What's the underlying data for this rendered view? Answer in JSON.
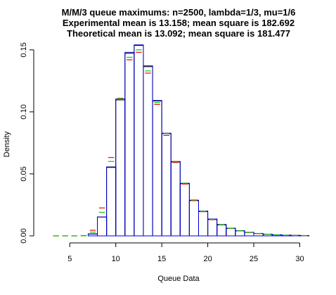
{
  "chart_data": {
    "type": "bar",
    "title_lines": [
      "M/M/3 queue maximums: n=2500, lambda=1/3, mu=1/6",
      "Experimental mean is 13.158; mean square is 182.692",
      "Theoretical mean is 13.092; mean square is 181.477"
    ],
    "xlabel": "Queue Data",
    "ylabel": "Density",
    "xlim": [
      2,
      30.5
    ],
    "ylim": [
      0,
      0.155
    ],
    "x_ticks": [
      5,
      10,
      15,
      20,
      25,
      30
    ],
    "y_ticks": [
      0.0,
      0.05,
      0.1,
      0.15
    ],
    "x_tick_labels": [
      "5",
      "10",
      "15",
      "20",
      "25",
      "30"
    ],
    "y_tick_labels": [
      "0.00",
      "0.05",
      "0.10",
      "0.15"
    ],
    "bin_width": 1,
    "bins_left": [
      3,
      4,
      5,
      6,
      7,
      8,
      9,
      10,
      11,
      12,
      13,
      14,
      15,
      16,
      17,
      18,
      19,
      20,
      21,
      22,
      23,
      24,
      25,
      26,
      27,
      28,
      29,
      30
    ],
    "series": [
      {
        "style": "histogram",
        "color": "#000000",
        "values": [
          0,
          0,
          0,
          0,
          0.0016,
          0.0152,
          0.0552,
          0.1096,
          0.1472,
          0.1536,
          0.1364,
          0.1088,
          0.0824,
          0.0596,
          0.042,
          0.0284,
          0.0196,
          0.0132,
          0.0088,
          0.006,
          0.004,
          0.0028,
          0.002,
          0.0012,
          0.0008,
          0.0006,
          0.0004,
          0.0003
        ]
      },
      {
        "style": "markers",
        "color": "#ff0000",
        "values": [
          0,
          0,
          0,
          0.0002,
          0.0045,
          0.0225,
          0.0632,
          0.1105,
          0.142,
          0.148,
          0.1312,
          0.106,
          0.081,
          0.0592,
          0.0418,
          0.0285,
          0.0195,
          0.013,
          0.0088,
          0.006,
          0.004,
          0.0027,
          0.0018,
          0.0012,
          0.0008,
          0.0005,
          0.0003,
          0.0002
        ]
      },
      {
        "style": "markers",
        "color": "#00cc00",
        "values": [
          0,
          0,
          0,
          0.0001,
          0.003,
          0.019,
          0.06,
          0.111,
          0.144,
          0.15,
          0.133,
          0.1075,
          0.0825,
          0.06,
          0.0425,
          0.029,
          0.0198,
          0.0133,
          0.009,
          0.0061,
          0.0041,
          0.0028,
          0.0019,
          0.0012,
          0.0008,
          0.0005,
          0.0003,
          0.0002
        ]
      },
      {
        "style": "histogram",
        "color": "#0000cc",
        "values": [
          0,
          0,
          0,
          0,
          0.0014,
          0.0152,
          0.0556,
          0.1104,
          0.148,
          0.154,
          0.1372,
          0.1092,
          0.0828,
          0.06,
          0.0424,
          0.0288,
          0.02,
          0.0136,
          0.0092,
          0.0062,
          0.0042,
          0.0029,
          0.002,
          0.0013,
          0.0009,
          0.0006,
          0.0004,
          0.0003
        ]
      }
    ]
  }
}
